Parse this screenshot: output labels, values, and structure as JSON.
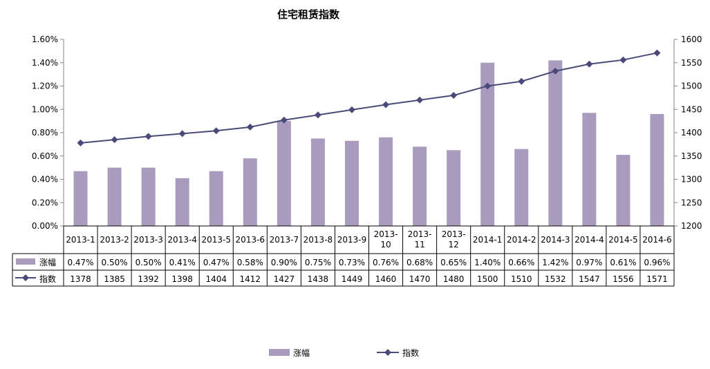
{
  "chart_data": {
    "type": "bar",
    "title": "住宅租赁指数",
    "categories": [
      "2013-1",
      "2013-2",
      "2013-3",
      "2013-4",
      "2013-5",
      "2013-6",
      "2013-7",
      "2013-8",
      "2013-9",
      "2013-10",
      "2013-11",
      "2013-12",
      "2014-1",
      "2014-2",
      "2014-3",
      "2014-4",
      "2014-5",
      "2014-6"
    ],
    "series": [
      {
        "name": "涨幅",
        "type": "bar",
        "axis": "left",
        "values": [
          0.47,
          0.5,
          0.5,
          0.41,
          0.47,
          0.58,
          0.9,
          0.75,
          0.73,
          0.76,
          0.68,
          0.65,
          1.4,
          0.66,
          1.42,
          0.97,
          0.61,
          0.96
        ],
        "labels": [
          "0.47%",
          "0.50%",
          "0.50%",
          "0.41%",
          "0.47%",
          "0.58%",
          "0.90%",
          "0.75%",
          "0.73%",
          "0.76%",
          "0.68%",
          "0.65%",
          "1.40%",
          "0.66%",
          "1.42%",
          "0.97%",
          "0.61%",
          "0.96%"
        ],
        "color": "#a99bbd"
      },
      {
        "name": "指数",
        "type": "line",
        "axis": "right",
        "values": [
          1378,
          1385,
          1392,
          1398,
          1404,
          1412,
          1427,
          1438,
          1449,
          1460,
          1470,
          1480,
          1500,
          1510,
          1532,
          1547,
          1556,
          1571
        ],
        "labels": [
          "1378",
          "1385",
          "1392",
          "1398",
          "1404",
          "1412",
          "1427",
          "1438",
          "1449",
          "1460",
          "1470",
          "1480",
          "1500",
          "1510",
          "1532",
          "1547",
          "1556",
          "1571"
        ],
        "color": "#4a4a7a"
      }
    ],
    "y_left": {
      "ylim": [
        0,
        1.6
      ],
      "ticks": [
        "0.00%",
        "0.20%",
        "0.40%",
        "0.60%",
        "0.80%",
        "1.00%",
        "1.20%",
        "1.40%",
        "1.60%"
      ]
    },
    "y_right": {
      "ylim": [
        1200,
        1600
      ],
      "ticks": [
        "1200",
        "1250",
        "1300",
        "1350",
        "1400",
        "1450",
        "1500",
        "1550",
        "1600"
      ]
    },
    "legend": [
      "涨幅",
      "指数"
    ],
    "legend_position": "bottom",
    "data_table": true,
    "grid": false
  }
}
